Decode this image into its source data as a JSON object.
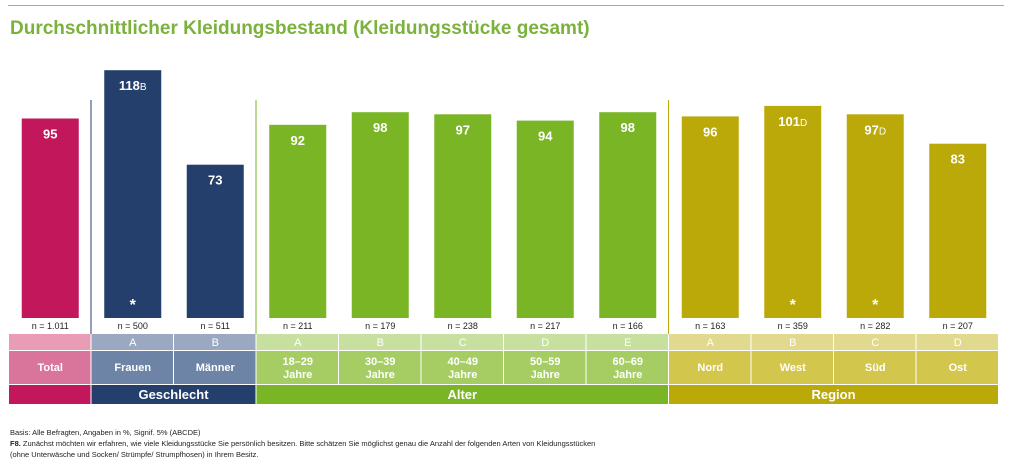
{
  "title": "Durchschnittlicher Kleidungsbestand (Kleidungsstücke gesamt)",
  "chart_data": {
    "type": "bar",
    "title": "Durchschnittlicher Kleidungsbestand (Kleidungsstücke gesamt)",
    "ylim": [
      0,
      120
    ],
    "grid": false,
    "bars": [
      {
        "category": "Total",
        "value": 95,
        "sig": "",
        "star": false,
        "n": "n = 1.011",
        "letter": "",
        "group": "total",
        "color": "#c2185b"
      },
      {
        "category": "Frauen",
        "value": 118,
        "sig": "B",
        "star": true,
        "n": "n = 500",
        "letter": "A",
        "group": "geschlecht",
        "color": "#243f6b"
      },
      {
        "category": "Männer",
        "value": 73,
        "sig": "",
        "star": false,
        "n": "n = 511",
        "letter": "B",
        "group": "geschlecht",
        "color": "#243f6b"
      },
      {
        "category": "18–29 Jahre",
        "value": 92,
        "sig": "",
        "star": false,
        "n": "n = 211",
        "letter": "A",
        "group": "alter",
        "color": "#7ab526"
      },
      {
        "category": "30–39 Jahre",
        "value": 98,
        "sig": "",
        "star": false,
        "n": "n = 179",
        "letter": "B",
        "group": "alter",
        "color": "#7ab526"
      },
      {
        "category": "40–49 Jahre",
        "value": 97,
        "sig": "",
        "star": false,
        "n": "n = 238",
        "letter": "C",
        "group": "alter",
        "color": "#7ab526"
      },
      {
        "category": "50–59 Jahre",
        "value": 94,
        "sig": "",
        "star": false,
        "n": "n = 217",
        "letter": "D",
        "group": "alter",
        "color": "#7ab526"
      },
      {
        "category": "60–69 Jahre",
        "value": 98,
        "sig": "",
        "star": false,
        "n": "n = 166",
        "letter": "E",
        "group": "alter",
        "color": "#7ab526"
      },
      {
        "category": "Nord",
        "value": 96,
        "sig": "",
        "star": false,
        "n": "n = 163",
        "letter": "A",
        "group": "region",
        "color": "#bba90a"
      },
      {
        "category": "West",
        "value": 101,
        "sig": "D",
        "star": true,
        "n": "n = 359",
        "letter": "B",
        "group": "region",
        "color": "#bba90a"
      },
      {
        "category": "Süd",
        "value": 97,
        "sig": "D",
        "star": true,
        "n": "n = 282",
        "letter": "C",
        "group": "region",
        "color": "#bba90a"
      },
      {
        "category": "Ost",
        "value": 83,
        "sig": "",
        "star": false,
        "n": "n = 207",
        "letter": "D",
        "group": "region",
        "color": "#bba90a"
      }
    ],
    "groups": [
      {
        "key": "total",
        "label": "",
        "color": "#c2185b",
        "light": "#e89cb6",
        "label_bg": "#d9759a"
      },
      {
        "key": "geschlecht",
        "label": "Geschlecht",
        "color": "#243f6b",
        "light": "#9aa9c1",
        "label_bg": "#6e84a6"
      },
      {
        "key": "alter",
        "label": "Alter",
        "color": "#7ab526",
        "light": "#c8e09f",
        "label_bg": "#a5cd63"
      },
      {
        "key": "region",
        "label": "Region",
        "color": "#bba90a",
        "light": "#e1d98e",
        "label_bg": "#d3c64c"
      }
    ]
  },
  "footnote": {
    "basis": "Basis: Alle Befragten, Angaben in %, Signif. 5% (ABCDE)",
    "question_id": "F8.",
    "question_line1": " Zunächst möchten wir erfahren, wie viele Kleidungsstücke Sie persönlich besitzen. Bitte schätzen Sie möglichst genau die Anzahl der folgenden Arten von Kleidungsstücken",
    "question_line2": "(ohne Unterwäsche und Socken/ Strümpfe/ Strumpfhosen) in Ihrem Besitz."
  }
}
